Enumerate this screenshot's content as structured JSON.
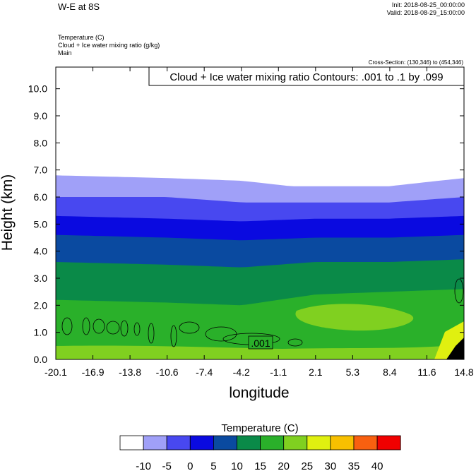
{
  "header": {
    "title": "W-E at 8S",
    "init": "Init: 2018-08-25_00:00:00",
    "valid": "Valid: 2018-08-29_15:00:00",
    "fields": [
      "Temperature   (C)",
      "Cloud + Ice water mixing ratio   (g/kg)",
      "Main"
    ],
    "cross_section": "Cross-Section: (130,346) to (454,346)",
    "contour_info": "Cloud + Ice water mixing ratio Contours: .001 to .1 by .099"
  },
  "chart_data": {
    "type": "area",
    "title": "W-E at 8S",
    "xlabel": "longitude",
    "ylabel": "Height (km)",
    "x_ticks": [
      "-20.1",
      "-16.9",
      "-13.8",
      "-10.6",
      "-7.4",
      "-4.2",
      "-1.1",
      "2.1",
      "5.3",
      "8.4",
      "11.6",
      "14.8"
    ],
    "y_ticks": [
      "0.0",
      "1.0",
      "2.0",
      "3.0",
      "4.0",
      "5.0",
      "6.0",
      "7.0",
      "8.0",
      "9.0",
      "10.0"
    ],
    "xlim": [
      -20.1,
      14.8
    ],
    "ylim": [
      0,
      10.8
    ],
    "colorbar_title": "Temperature  (C)",
    "colorbar_labels": [
      "-10",
      "-5",
      "0",
      "5",
      "10",
      "15",
      "20",
      "25",
      "30",
      "35",
      "40"
    ],
    "colorbar_colors": [
      "#ffffff",
      "#a0a0f8",
      "#4848f0",
      "#0a0ae0",
      "#0a4aa0",
      "#0a8a48",
      "#2ab02a",
      "#80d020",
      "#e0f010",
      "#f8c000",
      "#f86010",
      "#f00000"
    ],
    "band_colors": [
      "#2ab02a",
      "#0a8a48",
      "#0a4aa0",
      "#0a0ae0",
      "#4848f0",
      "#a0a0f8"
    ],
    "band_boundaries_km": [
      {
        "x": [
          -20.1,
          -10.6,
          -4.2,
          2.1,
          8.4,
          14.8
        ],
        "z": [
          2.2,
          2.1,
          2.0,
          2.4,
          2.5,
          2.6
        ]
      },
      {
        "x": [
          -20.1,
          -10.6,
          -4.2,
          2.1,
          8.4,
          14.8
        ],
        "z": [
          3.6,
          3.5,
          3.4,
          3.6,
          3.6,
          3.7
        ]
      },
      {
        "x": [
          -20.1,
          -10.6,
          -4.2,
          2.1,
          8.4,
          14.8
        ],
        "z": [
          4.6,
          4.5,
          4.4,
          4.5,
          4.5,
          4.6
        ]
      },
      {
        "x": [
          -20.1,
          -10.6,
          -4.2,
          2.1,
          8.4,
          14.8
        ],
        "z": [
          5.3,
          5.2,
          5.1,
          5.2,
          5.2,
          5.3
        ]
      },
      {
        "x": [
          -20.1,
          -10.6,
          -4.2,
          2.1,
          8.4,
          14.8
        ],
        "z": [
          6.0,
          6.0,
          5.8,
          5.8,
          5.8,
          6.0
        ]
      },
      {
        "x": [
          -20.1,
          -10.6,
          -4.2,
          0.0,
          8.4,
          14.8
        ],
        "z": [
          6.8,
          6.7,
          6.6,
          6.4,
          6.4,
          6.7
        ]
      }
    ],
    "contour_label": ".001"
  }
}
